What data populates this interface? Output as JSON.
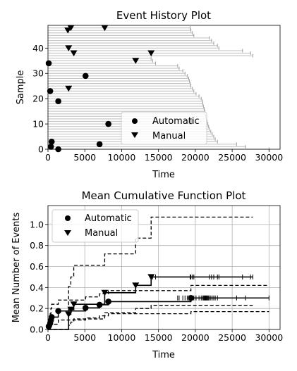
{
  "chart_data": [
    {
      "type": "scatter",
      "title": "Event History Plot",
      "xlabel": "Time",
      "ylabel": "Sample",
      "xlim": [
        0,
        31500
      ],
      "ylim": [
        0,
        49
      ],
      "xticks": [
        0,
        5000,
        10000,
        15000,
        20000,
        25000,
        30000
      ],
      "yticks": [
        0,
        10,
        20,
        30,
        40
      ],
      "grid": false,
      "legend_position": "lower-right",
      "legend": [
        "Automatic",
        "Manual"
      ],
      "sample_end_times": [
        30000,
        26800,
        25600,
        23000,
        22700,
        22500,
        22300,
        22100,
        21900,
        21800,
        21700,
        21600,
        21500,
        21400,
        21300,
        21300,
        21200,
        21100,
        21000,
        21000,
        20800,
        20500,
        20100,
        19800,
        19600,
        19400,
        19300,
        19200,
        19100,
        18900,
        18600,
        18300,
        17800,
        17600,
        14600,
        14200,
        14000,
        27800,
        27500,
        26400,
        23200,
        23000,
        22500,
        22200,
        21900,
        19800,
        19600,
        19400,
        19300
      ],
      "series": [
        {
          "name": "Automatic",
          "marker": "circle",
          "points": [
            [
              1400,
              0
            ],
            [
              400,
              1
            ],
            [
              7000,
              2
            ],
            [
              500,
              3
            ],
            [
              8200,
              10
            ],
            [
              19400,
              11
            ],
            [
              1400,
              19
            ],
            [
              300,
              23
            ],
            [
              5100,
              29
            ],
            [
              100,
              34
            ]
          ]
        },
        {
          "name": "Manual",
          "marker": "triangle-down",
          "points": [
            [
              2800,
              24
            ],
            [
              11900,
              35
            ],
            [
              3500,
              38
            ],
            [
              14000,
              38
            ],
            [
              2800,
              40
            ],
            [
              2700,
              47
            ],
            [
              3100,
              48
            ],
            [
              7700,
              48
            ]
          ]
        }
      ]
    },
    {
      "type": "line",
      "title": "Mean Cumulative Function Plot",
      "xlabel": "Time",
      "ylabel": "Mean Number of Events",
      "xlim": [
        0,
        31500
      ],
      "ylim": [
        0,
        1.18
      ],
      "xticks": [
        0,
        5000,
        10000,
        15000,
        20000,
        25000,
        30000
      ],
      "yticks": [
        0.0,
        0.2,
        0.4,
        0.6,
        0.8,
        1.0
      ],
      "grid": true,
      "legend_position": "upper-left",
      "legend": [
        "Automatic",
        "Manual"
      ],
      "series": [
        {
          "name": "Automatic",
          "marker": "circle",
          "steps": [
            [
              0,
              0.0
            ],
            [
              100,
              0.029
            ],
            [
              300,
              0.059
            ],
            [
              400,
              0.088
            ],
            [
              500,
              0.118
            ],
            [
              1400,
              0.176
            ],
            [
              5100,
              0.206
            ],
            [
              7000,
              0.235
            ],
            [
              8200,
              0.265
            ],
            [
              19400,
              0.3
            ],
            [
              30000,
              0.3
            ]
          ],
          "upper": [
            [
              0,
              0.0
            ],
            [
              100,
              0.09
            ],
            [
              300,
              0.15
            ],
            [
              400,
              0.2
            ],
            [
              500,
              0.24
            ],
            [
              1400,
              0.28
            ],
            [
              5100,
              0.31
            ],
            [
              7000,
              0.34
            ],
            [
              8200,
              0.37
            ],
            [
              19400,
              0.42
            ],
            [
              30000,
              0.42
            ]
          ],
          "lower": [
            [
              0,
              0.0
            ],
            [
              100,
              0.0
            ],
            [
              300,
              0.01
            ],
            [
              400,
              0.03
            ],
            [
              500,
              0.05
            ],
            [
              1400,
              0.09
            ],
            [
              5100,
              0.11
            ],
            [
              7000,
              0.13
            ],
            [
              8200,
              0.15
            ],
            [
              19400,
              0.17
            ],
            [
              30000,
              0.17
            ]
          ],
          "censor_times": [
            17600,
            17800,
            18300,
            18600,
            18900,
            19100,
            19200,
            19300,
            19600,
            19800,
            20100,
            20500,
            20800,
            21000,
            21100,
            21200,
            21300,
            21400,
            21500,
            21600,
            21700,
            21800,
            21900,
            22100,
            22300,
            22500,
            22700,
            23000,
            25600,
            26800,
            30000
          ]
        },
        {
          "name": "Manual",
          "marker": "triangle-down",
          "steps": [
            [
              0,
              0.0
            ],
            [
              2700,
              0.0
            ],
            [
              2800,
              0.143
            ],
            [
              3100,
              0.19
            ],
            [
              3500,
              0.24
            ],
            [
              7700,
              0.35
            ],
            [
              11900,
              0.42
            ],
            [
              14000,
              0.5
            ],
            [
              27800,
              0.5
            ]
          ],
          "upper": [
            [
              0,
              0.0
            ],
            [
              2700,
              0.0
            ],
            [
              2800,
              0.41
            ],
            [
              3100,
              0.5
            ],
            [
              3500,
              0.61
            ],
            [
              7700,
              0.72
            ],
            [
              11900,
              0.87
            ],
            [
              14000,
              1.07
            ],
            [
              27800,
              1.07
            ]
          ],
          "lower": [
            [
              0,
              0.0
            ],
            [
              2700,
              0.0
            ],
            [
              2800,
              0.04
            ],
            [
              3100,
              0.07
            ],
            [
              3500,
              0.1
            ],
            [
              7700,
              0.16
            ],
            [
              11900,
              0.2
            ],
            [
              14000,
              0.23
            ],
            [
              27800,
              0.23
            ]
          ],
          "censor_times": [
            14200,
            14600,
            19300,
            19400,
            19600,
            19800,
            21900,
            22200,
            22500,
            23000,
            23200,
            26400,
            27500,
            27800
          ]
        }
      ]
    }
  ]
}
